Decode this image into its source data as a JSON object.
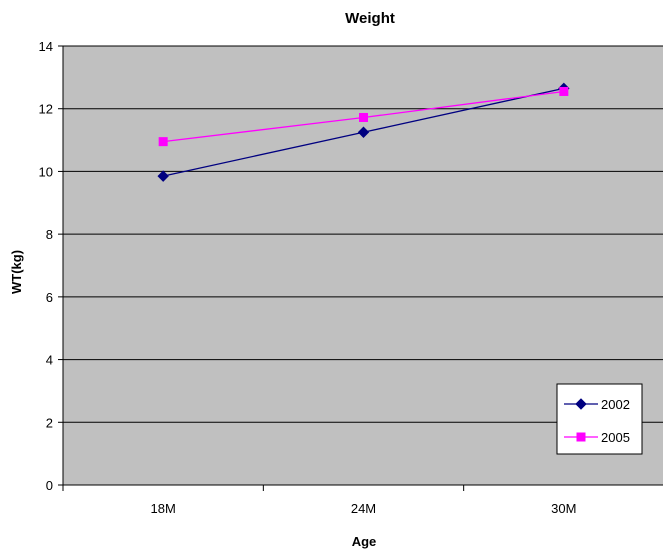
{
  "chart_data": {
    "type": "line",
    "title": "Weight",
    "xlabel": "Age",
    "ylabel": "WT(kg)",
    "categories": [
      "18M",
      "24M",
      "30M"
    ],
    "ylim": [
      0,
      14
    ],
    "yticks": [
      0,
      2,
      4,
      6,
      8,
      10,
      12,
      14
    ],
    "grid": true,
    "legend_position": "bottom-right",
    "plot_background": "#c0c0c0",
    "series": [
      {
        "name": "2002",
        "values": [
          9.85,
          11.25,
          12.65
        ],
        "color": "#000080",
        "marker": "diamond"
      },
      {
        "name": "2005",
        "values": [
          10.95,
          11.72,
          12.55
        ],
        "color": "#ff00ff",
        "marker": "square"
      }
    ]
  }
}
